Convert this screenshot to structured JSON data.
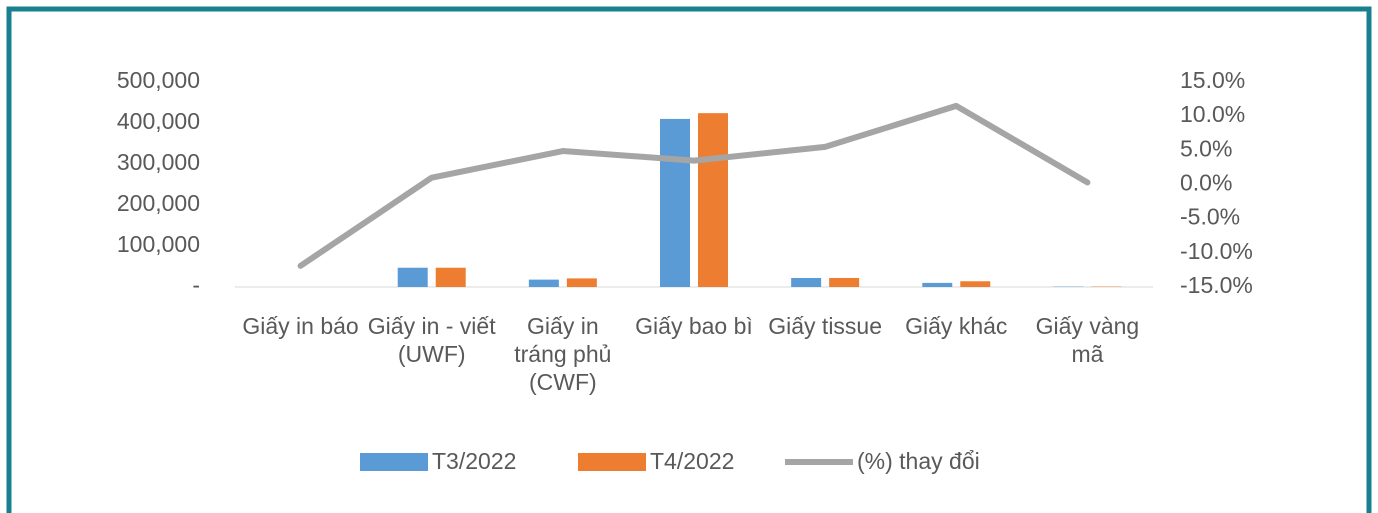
{
  "chart_data": {
    "type": "bar",
    "categories": [
      "Giấy in báo",
      "Giấy in - viết (UWF)",
      "Giấy in tráng phủ (CWF)",
      "Giấy bao bì",
      "Giấy tissue",
      "Giấy khác",
      "Giấy vàng mã"
    ],
    "series": [
      {
        "name": "T3/2022",
        "color": "#5b9bd5",
        "values": [
          0,
          47000,
          18000,
          410000,
          22000,
          10000,
          1000
        ]
      },
      {
        "name": "T4/2022",
        "color": "#ed7d31",
        "values": [
          0,
          47000,
          21000,
          424000,
          22000,
          14000,
          1000
        ]
      },
      {
        "name": "(%) thay đổi",
        "color": "#a5a5a5",
        "type": "line",
        "axis": "y2",
        "values": [
          -11.9,
          1.0,
          4.9,
          3.5,
          5.5,
          11.5,
          0.3
        ]
      }
    ],
    "ylim": [
      0,
      500000
    ],
    "yticks": [
      {
        "value": 0,
        "label": "-"
      },
      {
        "value": 100000,
        "label": "100,000"
      },
      {
        "value": 200000,
        "label": "200,000"
      },
      {
        "value": 300000,
        "label": "300,000"
      },
      {
        "value": 400000,
        "label": "400,000"
      },
      {
        "value": 500000,
        "label": "500,000"
      }
    ],
    "y2lim": [
      -15,
      15
    ],
    "y2ticks": [
      {
        "value": -15,
        "label": "-15.0%"
      },
      {
        "value": -10,
        "label": "-10.0%"
      },
      {
        "value": -5,
        "label": "-5.0%"
      },
      {
        "value": 0,
        "label": "0.0%"
      },
      {
        "value": 5,
        "label": "5.0%"
      },
      {
        "value": 10,
        "label": "10.0%"
      },
      {
        "value": 15,
        "label": "15.0%"
      }
    ],
    "legend": "bottom"
  }
}
